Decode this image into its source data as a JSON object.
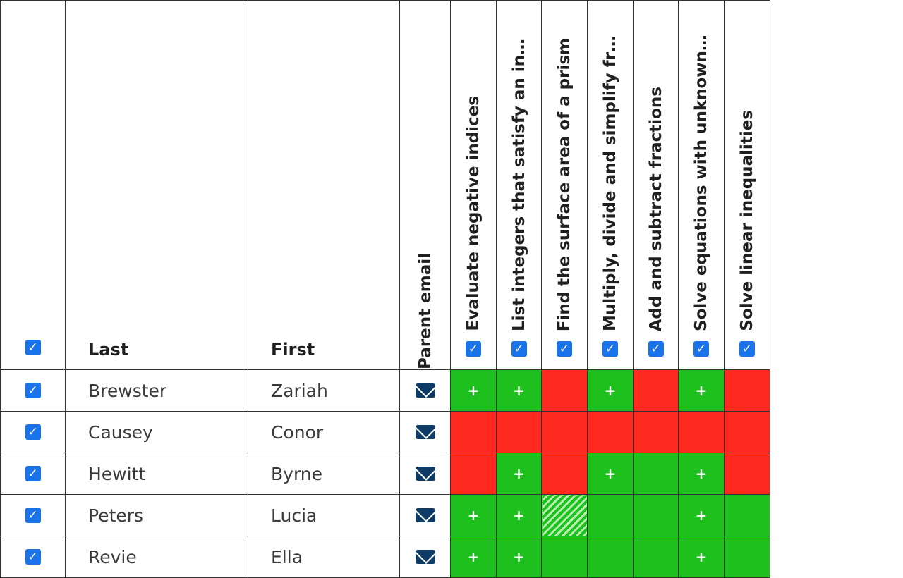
{
  "header": {
    "select_all_checked": true,
    "last_label": "Last",
    "first_label": "First",
    "email_label": "Parent email",
    "check_glyph": "✓"
  },
  "skills": [
    {
      "label": "Evaluate negative indices",
      "checked": true
    },
    {
      "label": "List integers that satisfy an inequality",
      "checked": true
    },
    {
      "label": "Find the surface area of a prism",
      "checked": true
    },
    {
      "label": "Multiply, divide and simplify fractions",
      "checked": true
    },
    {
      "label": "Add and subtract fractions",
      "checked": true
    },
    {
      "label": "Solve equations with unknowns on both sides",
      "checked": true
    },
    {
      "label": "Solve linear inequalities",
      "checked": true
    }
  ],
  "students": [
    {
      "last": "Brewster",
      "first": "Zariah",
      "checked": true,
      "results": [
        {
          "status": "green",
          "mark": "+"
        },
        {
          "status": "green",
          "mark": "+"
        },
        {
          "status": "red",
          "mark": ""
        },
        {
          "status": "green",
          "mark": "+"
        },
        {
          "status": "red",
          "mark": ""
        },
        {
          "status": "green",
          "mark": "+"
        },
        {
          "status": "red",
          "mark": ""
        }
      ]
    },
    {
      "last": "Causey",
      "first": "Conor",
      "checked": true,
      "results": [
        {
          "status": "red",
          "mark": ""
        },
        {
          "status": "red",
          "mark": ""
        },
        {
          "status": "red",
          "mark": ""
        },
        {
          "status": "red",
          "mark": ""
        },
        {
          "status": "red",
          "mark": ""
        },
        {
          "status": "red",
          "mark": ""
        },
        {
          "status": "red",
          "mark": ""
        }
      ]
    },
    {
      "last": "Hewitt",
      "first": "Byrne",
      "checked": true,
      "results": [
        {
          "status": "red",
          "mark": ""
        },
        {
          "status": "green",
          "mark": "+"
        },
        {
          "status": "red",
          "mark": ""
        },
        {
          "status": "green",
          "mark": "+"
        },
        {
          "status": "green",
          "mark": ""
        },
        {
          "status": "green",
          "mark": "+"
        },
        {
          "status": "red",
          "mark": ""
        }
      ]
    },
    {
      "last": "Peters",
      "first": "Lucia",
      "checked": true,
      "results": [
        {
          "status": "green",
          "mark": "+"
        },
        {
          "status": "green",
          "mark": "+"
        },
        {
          "status": "hatch",
          "mark": ""
        },
        {
          "status": "green",
          "mark": ""
        },
        {
          "status": "green",
          "mark": ""
        },
        {
          "status": "green",
          "mark": "+"
        },
        {
          "status": "green",
          "mark": ""
        }
      ]
    },
    {
      "last": "Revie",
      "first": "Ella",
      "checked": true,
      "results": [
        {
          "status": "green",
          "mark": "+"
        },
        {
          "status": "green",
          "mark": "+"
        },
        {
          "status": "green",
          "mark": ""
        },
        {
          "status": "green",
          "mark": ""
        },
        {
          "status": "green",
          "mark": ""
        },
        {
          "status": "green",
          "mark": "+"
        },
        {
          "status": "green",
          "mark": ""
        }
      ]
    }
  ],
  "colors": {
    "pass": "#1ec01e",
    "fail": "#ff2a1f",
    "checkbox": "#1a73e8",
    "email_icon": "#0d3b66"
  },
  "icons": {
    "checkbox": "checkbox-checked-icon",
    "email": "envelope-icon"
  }
}
